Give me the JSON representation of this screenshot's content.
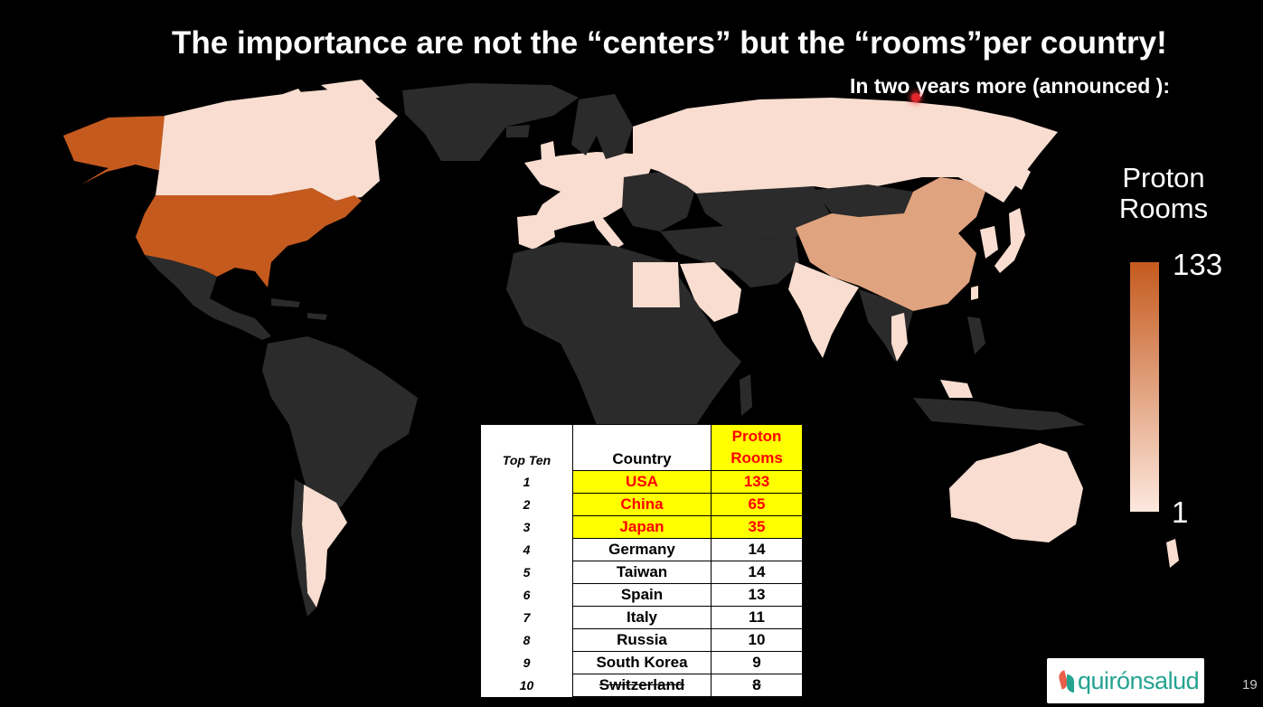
{
  "slide": {
    "title": "The importance are not the “centers” but the “rooms”per country!",
    "subtitle": "In two years more  (announced ):",
    "page_number": "19"
  },
  "legend": {
    "title_line1": "Proton",
    "title_line2": "Rooms",
    "max": "133",
    "min": "1",
    "color_max": "#c55a1e",
    "color_min": "#fde8de"
  },
  "map_colors": {
    "no_data": "#2b2b2b",
    "usa": "#c55a1e",
    "china": "#e0a37f",
    "low": "#f8ddd0"
  },
  "table": {
    "header_rank": "Top Ten",
    "header_country": "Country",
    "header_rooms_line1": "Proton",
    "header_rooms_line2": "Rooms",
    "rows": [
      {
        "rank": "1",
        "country": "USA",
        "rooms": "133"
      },
      {
        "rank": "2",
        "country": "China",
        "rooms": "65"
      },
      {
        "rank": "3",
        "country": "Japan",
        "rooms": "35"
      },
      {
        "rank": "4",
        "country": "Germany",
        "rooms": "14"
      },
      {
        "rank": "5",
        "country": "Taiwan",
        "rooms": "14"
      },
      {
        "rank": "6",
        "country": "Spain",
        "rooms": "13"
      },
      {
        "rank": "7",
        "country": "Italy",
        "rooms": "11"
      },
      {
        "rank": "8",
        "country": "Russia",
        "rooms": "10"
      },
      {
        "rank": "9",
        "country": "South Korea",
        "rooms": "9"
      },
      {
        "rank": "10",
        "country": "Switzerland",
        "rooms": "8"
      }
    ]
  },
  "logo": {
    "text": "quirónsalud"
  }
}
